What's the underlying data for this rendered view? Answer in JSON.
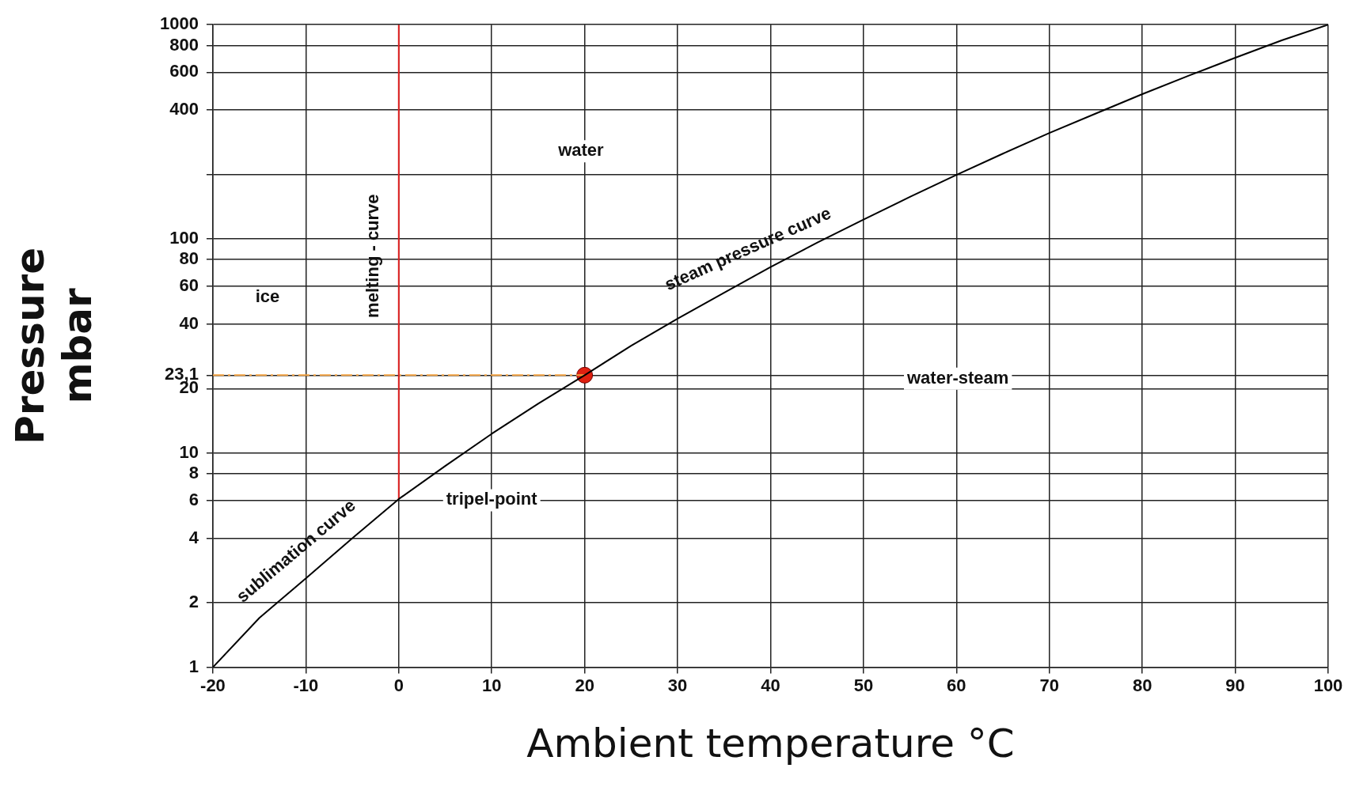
{
  "chart_data": {
    "type": "line",
    "xlabel": "Ambient temperature °C",
    "ylabel": "Pressure\nmbar",
    "log": "y",
    "grid": true,
    "legend": false,
    "xlim": [
      -20,
      100
    ],
    "xticks": [
      -20,
      -10,
      0,
      10,
      20,
      30,
      40,
      50,
      60,
      70,
      80,
      90,
      100
    ],
    "ylim": [
      1,
      1000
    ],
    "yticks": [
      1,
      2,
      4,
      6,
      8,
      10,
      20,
      {
        "value": 23.1,
        "label": "23,1"
      },
      40,
      60,
      80,
      100,
      {
        "value": 200,
        "label": null
      },
      400,
      600,
      800,
      1000
    ],
    "series": [
      {
        "type": "line",
        "color": "#000000",
        "marker": "none",
        "line_style": "solid",
        "x": [
          -20,
          -15,
          -10,
          -5,
          0,
          5,
          10,
          15,
          20,
          25,
          30,
          35,
          40,
          45,
          50,
          55,
          60,
          65,
          70,
          75,
          80,
          85,
          90,
          95,
          100
        ],
        "values": [
          1,
          1.7,
          2.6,
          4,
          6.1,
          8.7,
          12.3,
          17,
          23.1,
          31.7,
          42.4,
          56,
          73.8,
          96,
          123,
          157,
          199,
          250,
          312,
          385,
          474,
          578,
          701,
          845,
          1000
        ]
      },
      {
        "type": "line",
        "color": "#e02020",
        "marker": "none",
        "line_style": "solid",
        "x": [
          0,
          0
        ],
        "values": [
          6.1,
          1000
        ]
      },
      {
        "type": "line",
        "color": "#f0a040",
        "marker": "none",
        "line_style": "dashed",
        "x": [
          -20,
          20
        ],
        "values": [
          23.1,
          23.1
        ]
      },
      {
        "type": "scatter",
        "color": "#e02010",
        "marker": "circle",
        "x": [
          20
        ],
        "values": [
          23.1
        ]
      }
    ],
    "annotations": [
      "water",
      "ice",
      "melting - curve",
      "steam pressure curve",
      "sublimation curve",
      "tripel-point",
      "water-steam"
    ]
  }
}
